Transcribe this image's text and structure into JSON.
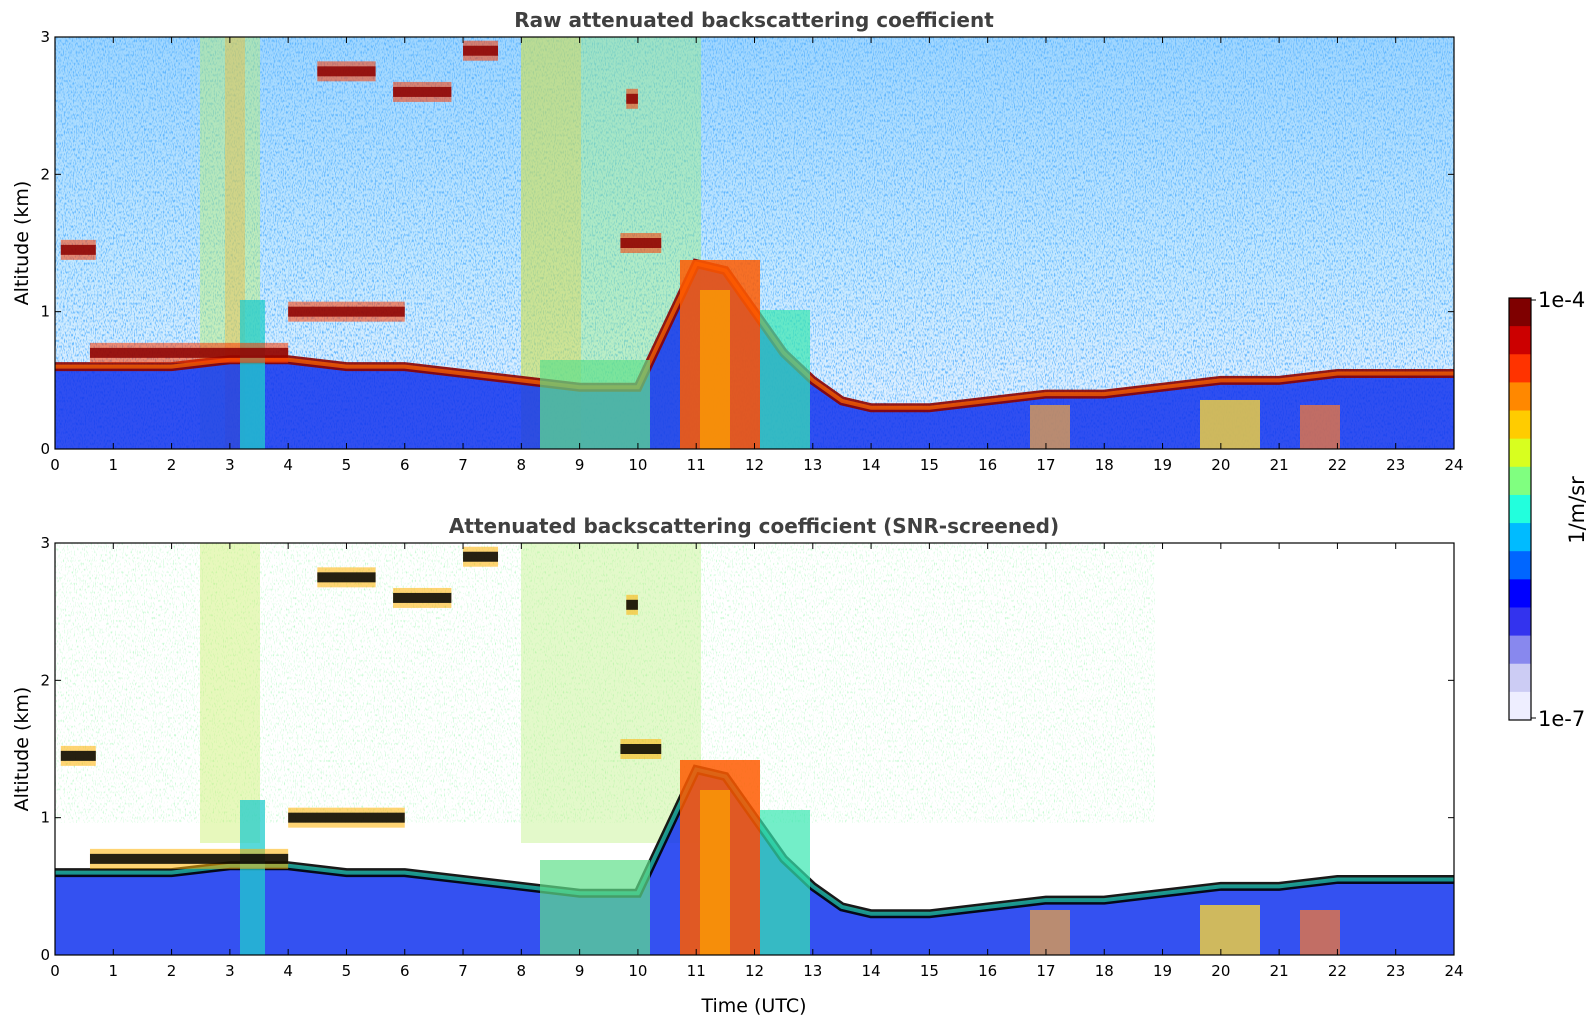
{
  "chart_data": [
    {
      "type": "heatmap",
      "title": "Raw attenuated backscattering coefficient",
      "xlabel": "",
      "ylabel": "Altitude (km)",
      "xlim": [
        0,
        24
      ],
      "ylim": [
        0,
        3
      ],
      "x_ticks": [
        "0",
        "1",
        "2",
        "3",
        "4",
        "5",
        "6",
        "7",
        "8",
        "9",
        "10",
        "11",
        "12",
        "13",
        "14",
        "15",
        "16",
        "17",
        "18",
        "19",
        "20",
        "21",
        "22",
        "23",
        "24"
      ],
      "y_ticks": [
        "0",
        "1",
        "2",
        "3"
      ],
      "layer_top_km": [
        [
          0,
          0.6
        ],
        [
          1,
          0.6
        ],
        [
          2,
          0.6
        ],
        [
          3,
          0.65
        ],
        [
          4,
          0.65
        ],
        [
          5,
          0.6
        ],
        [
          6,
          0.6
        ],
        [
          7,
          0.55
        ],
        [
          8,
          0.5
        ],
        [
          9,
          0.45
        ],
        [
          10,
          0.45
        ],
        [
          11,
          1.35
        ],
        [
          11.5,
          1.3
        ],
        [
          12,
          1.0
        ],
        [
          12.5,
          0.7
        ],
        [
          13,
          0.5
        ],
        [
          13.5,
          0.35
        ],
        [
          14,
          0.3
        ],
        [
          15,
          0.3
        ],
        [
          16,
          0.35
        ],
        [
          17,
          0.4
        ],
        [
          18,
          0.4
        ],
        [
          19,
          0.45
        ],
        [
          20,
          0.5
        ],
        [
          21,
          0.5
        ],
        [
          22,
          0.55
        ],
        [
          23,
          0.55
        ],
        [
          24,
          0.55
        ]
      ],
      "cloud_layers": [
        {
          "x": [
            0.1,
            0.7
          ],
          "alt_km": 1.45
        },
        {
          "x": [
            0.6,
            4.0
          ],
          "alt_km": 0.7
        },
        {
          "x": [
            4.0,
            6.0
          ],
          "alt_km": 1.0
        },
        {
          "x": [
            4.5,
            5.5
          ],
          "alt_km": 2.75
        },
        {
          "x": [
            5.8,
            6.8
          ],
          "alt_km": 2.6
        },
        {
          "x": [
            7.0,
            7.6
          ],
          "alt_km": 2.9
        },
        {
          "x": [
            9.7,
            10.4
          ],
          "alt_km": 1.5
        },
        {
          "x": [
            9.8,
            10.0
          ],
          "alt_km": 2.55
        }
      ],
      "colorbar": {
        "min_label": "1e-7",
        "max_label": "1e-4",
        "unit": "1/m/sr",
        "scale": "log",
        "colormap": "jet"
      }
    },
    {
      "type": "heatmap",
      "title": "Attenuated backscattering coefficient (SNR-screened)",
      "xlabel": "Time (UTC)",
      "ylabel": "Altitude (km)",
      "xlim": [
        0,
        24
      ],
      "ylim": [
        0,
        3
      ],
      "x_ticks": [
        "0",
        "1",
        "2",
        "3",
        "4",
        "5",
        "6",
        "7",
        "8",
        "9",
        "10",
        "11",
        "12",
        "13",
        "14",
        "15",
        "16",
        "17",
        "18",
        "19",
        "20",
        "21",
        "22",
        "23",
        "24"
      ],
      "y_ticks": [
        "0",
        "1",
        "2",
        "3"
      ]
    }
  ],
  "colorbar": {
    "top_label": "1e-4",
    "bottom_label": "1e-7",
    "unit_label": "1/m/sr",
    "colors": [
      "#7f0000",
      "#cc0000",
      "#ff3300",
      "#ff8800",
      "#ffcc00",
      "#d8ff1f",
      "#80ff80",
      "#22ffdd",
      "#00bbff",
      "#0066ff",
      "#0000ff",
      "#3333ee",
      "#8888ee",
      "#ccccf4",
      "#eeeeff"
    ]
  }
}
